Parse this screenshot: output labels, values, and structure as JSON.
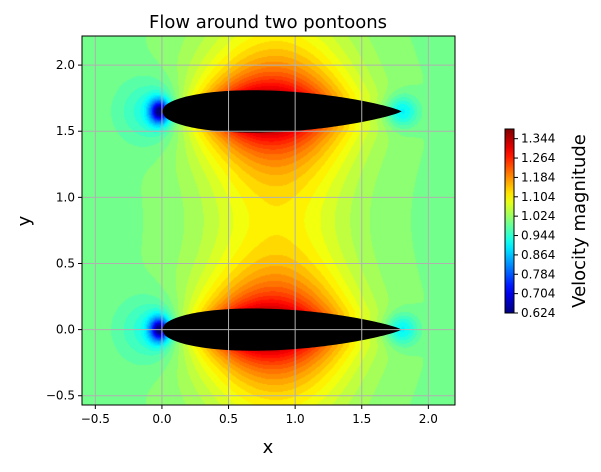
{
  "chart_data": {
    "type": "heatmap",
    "title": "Flow around two pontoons",
    "xlabel": "x",
    "ylabel": "y",
    "xlim": [
      -0.6,
      2.2
    ],
    "ylim": [
      -0.57,
      2.22
    ],
    "xticks": [
      -0.5,
      0.0,
      0.5,
      1.0,
      1.5,
      2.0
    ],
    "xtick_labels": [
      "−0.5",
      "0.0",
      "0.5",
      "1.0",
      "1.5",
      "2.0"
    ],
    "yticks": [
      -0.5,
      0.0,
      0.5,
      1.0,
      1.5,
      2.0
    ],
    "ytick_labels": [
      "−0.5",
      "0.0",
      "0.5",
      "1.0",
      "1.5",
      "2.0"
    ],
    "grid": true,
    "colormap": "jet",
    "colorbar": {
      "label": "Velocity magnitude",
      "vmin": 0.624,
      "vmax": 1.384,
      "ticks": [
        0.624,
        0.704,
        0.784,
        0.864,
        0.944,
        1.024,
        1.104,
        1.184,
        1.264,
        1.344
      ],
      "tick_labels": [
        "0.624",
        "0.704",
        "0.784",
        "0.864",
        "0.944",
        "1.024",
        "1.104",
        "1.184",
        "1.264",
        "1.344"
      ]
    },
    "freestream_value": 1.0,
    "pontoons": [
      {
        "name": "top",
        "leading_edge_x": 0.0,
        "trailing_edge_x": 1.8,
        "center_y": 1.65,
        "max_half_thickness": 0.23
      },
      {
        "name": "bottom",
        "leading_edge_x": 0.0,
        "trailing_edge_x": 1.8,
        "center_y": 0.0,
        "max_half_thickness": 0.23
      }
    ],
    "pontoon_color": "#000000",
    "grid_color": "#b0b0b0"
  }
}
